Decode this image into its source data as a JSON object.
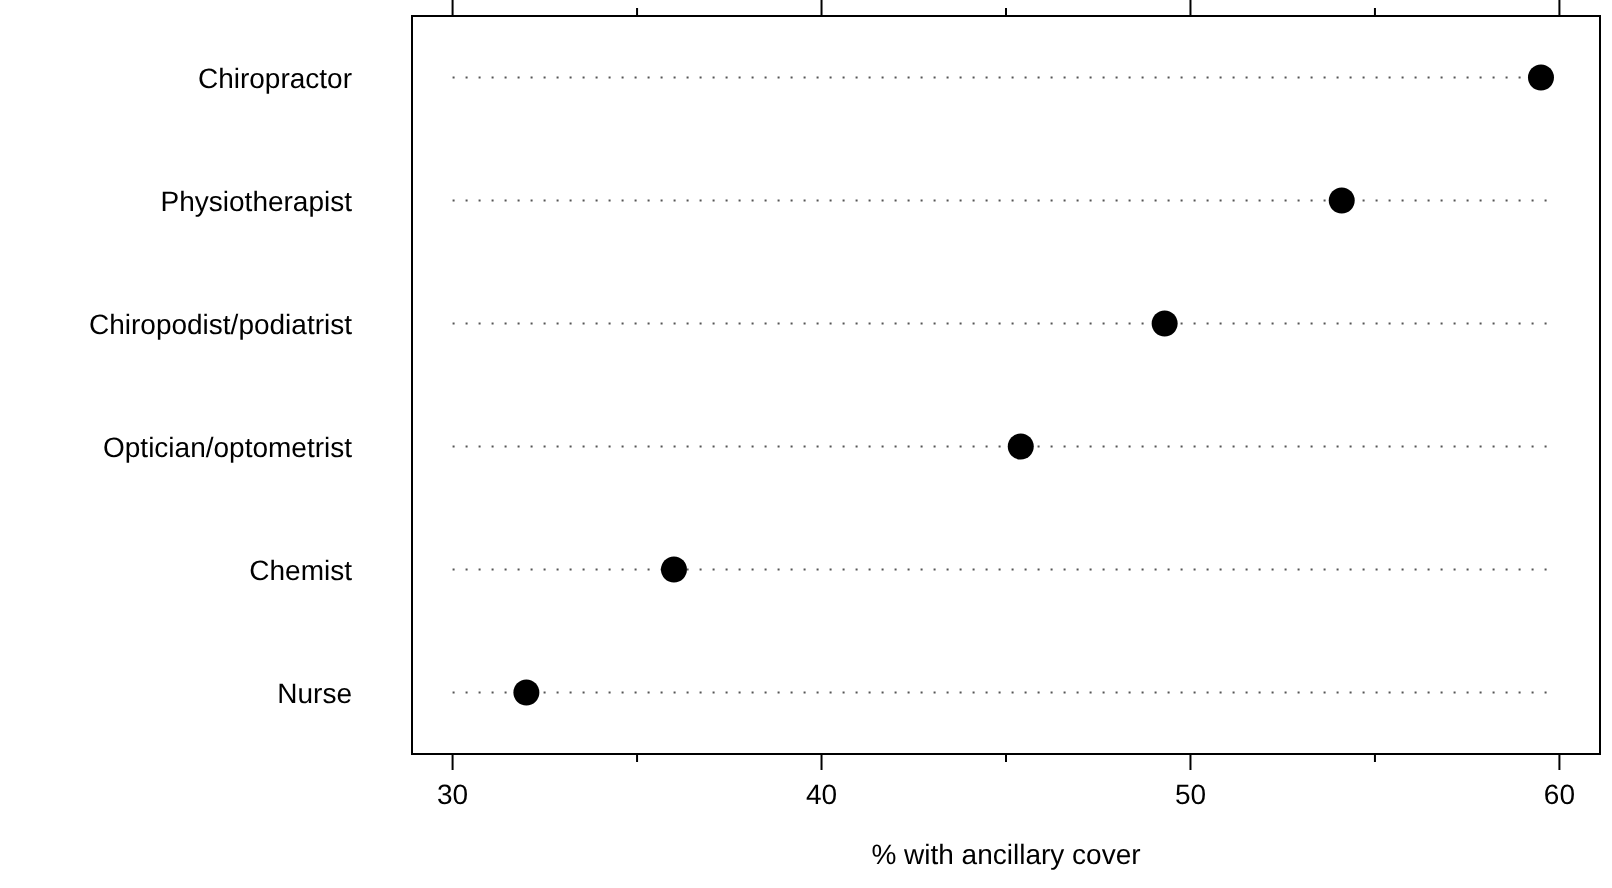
{
  "chart_data": {
    "type": "scatter",
    "orientation": "horizontal",
    "xlabel": "% with ancillary cover",
    "categories": [
      "Chiropractor",
      "Physiotherapist",
      "Chiropodist/podiatrist",
      "Optician/optometrist",
      "Chemist",
      "Nurse"
    ],
    "values": [
      59.5,
      54.1,
      49.3,
      45.4,
      36.0,
      32.0
    ],
    "color": "#000000",
    "marker": "circle",
    "grid": "y",
    "xlim": [
      28.9,
      61.1
    ],
    "xticks": [
      30,
      {
        "value": 35,
        "label": null
      },
      40,
      {
        "value": 45,
        "label": null
      },
      50,
      {
        "value": 55,
        "label": null
      },
      60
    ]
  }
}
